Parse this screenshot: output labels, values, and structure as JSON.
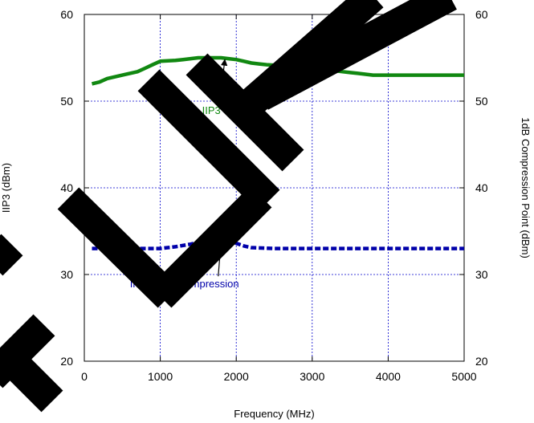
{
  "chart_data": {
    "type": "line",
    "title": "",
    "xlabel": "Frequency (MHz)",
    "ylabel": "IIP3 (dBm)",
    "y2label": "1dB Compression Point (dBm)",
    "xlim": [
      0,
      5000
    ],
    "ylim": [
      20,
      60
    ],
    "y2lim": [
      20,
      60
    ],
    "x_ticks": [
      0,
      1000,
      2000,
      3000,
      4000,
      5000
    ],
    "y_ticks": [
      20,
      30,
      40,
      50,
      60
    ],
    "y2_ticks": [
      20,
      30,
      40,
      50,
      60
    ],
    "grid": true,
    "legend": "none",
    "series": [
      {
        "name": "IIP3",
        "color": "#118811",
        "style": "solid",
        "x": [
          100,
          200,
          300,
          500,
          700,
          800,
          900,
          1000,
          1200,
          1300,
          1400,
          1500,
          1600,
          1700,
          1800,
          1900,
          2000,
          2100,
          2200,
          2300,
          2400,
          2600,
          2800,
          3000,
          3100,
          3200,
          3300,
          3400,
          3500,
          3600,
          3700,
          3800,
          4000,
          4200,
          4500,
          4800,
          5000
        ],
        "values": [
          52.0,
          52.2,
          52.6,
          53.0,
          53.4,
          53.8,
          54.2,
          54.6,
          54.7,
          54.8,
          54.9,
          55.0,
          55.0,
          55.0,
          55.0,
          54.9,
          54.8,
          54.6,
          54.4,
          54.3,
          54.2,
          54.1,
          54.0,
          54.0,
          53.8,
          53.6,
          53.5,
          53.4,
          53.3,
          53.2,
          53.1,
          53.0,
          53.0,
          53.0,
          53.0,
          53.0,
          53.0
        ]
      },
      {
        "name": "Input 1dB Compression",
        "color": "#0000aa",
        "style": "dashed",
        "x": [
          100,
          500,
          1000,
          1200,
          1400,
          1500,
          1600,
          1700,
          1800,
          1900,
          2000,
          2100,
          2200,
          2500,
          3000,
          3500,
          4000,
          4500,
          5000
        ],
        "values": [
          33.0,
          33.0,
          33.0,
          33.2,
          33.5,
          33.7,
          33.9,
          34.0,
          34.0,
          33.9,
          33.6,
          33.3,
          33.1,
          33.0,
          33.0,
          33.0,
          33.0,
          33.0,
          33.0
        ]
      }
    ],
    "annotations": [
      {
        "text": "IIP3",
        "text_x": 1550,
        "text_y": 48.5,
        "arrow_to_x": 1850,
        "arrow_to_y": 54.8,
        "color": "#118811"
      },
      {
        "text": "Input 1dB Compression",
        "text_x": 600,
        "text_y": 28.5,
        "arrow_to_x": 1800,
        "arrow_to_y": 33.8,
        "color": "#0000aa"
      }
    ]
  }
}
